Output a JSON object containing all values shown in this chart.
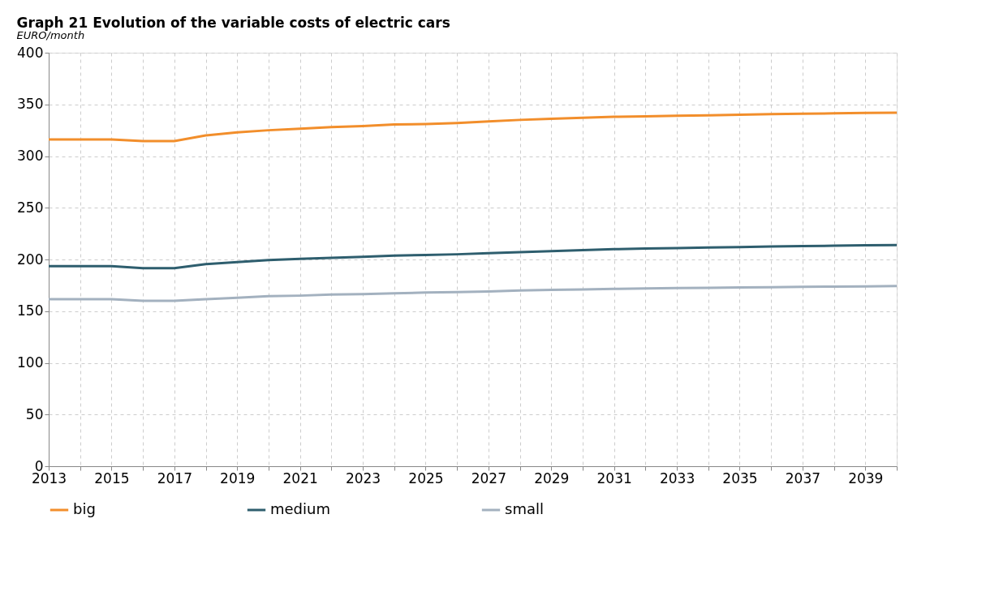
{
  "chart_data": {
    "type": "line",
    "title": "Graph 21   Evolution of the variable costs of electric cars",
    "ylabel": "EURO/month",
    "x": [
      2013,
      2014,
      2015,
      2016,
      2017,
      2018,
      2019,
      2020,
      2021,
      2022,
      2023,
      2024,
      2025,
      2026,
      2027,
      2028,
      2029,
      2030,
      2031,
      2032,
      2033,
      2034,
      2035,
      2036,
      2037,
      2038,
      2039,
      2040
    ],
    "series": [
      {
        "name": "big",
        "color": "#f28e2b",
        "values": [
          316,
          316,
          316,
          314.5,
          314.5,
          320,
          323,
          325,
          326.5,
          328,
          329,
          330.5,
          331,
          332,
          333.5,
          335,
          336,
          337,
          338,
          338.5,
          339,
          339.5,
          340,
          340.5,
          341,
          341.3,
          341.7,
          342
        ]
      },
      {
        "name": "medium",
        "color": "#2e5e6e",
        "values": [
          193.5,
          193.5,
          193.5,
          191.5,
          191.5,
          195.5,
          197.5,
          199.5,
          200.5,
          201.5,
          202.5,
          203.7,
          204.3,
          205,
          206,
          207,
          208,
          209,
          210,
          210.5,
          211,
          211.5,
          212,
          212.5,
          213,
          213.3,
          213.7,
          214
        ]
      },
      {
        "name": "small",
        "color": "#a3b1bf",
        "values": [
          161.5,
          161.5,
          161.5,
          160,
          160,
          161.5,
          163,
          164.5,
          165,
          166,
          166.5,
          167.3,
          168,
          168.5,
          169,
          170,
          170.5,
          171,
          171.5,
          172,
          172.3,
          172.5,
          173,
          173.2,
          173.5,
          173.7,
          174,
          174.3
        ]
      }
    ],
    "xlim": [
      2013,
      2040
    ],
    "xticks": [
      2013,
      {
        "value": 2014,
        "label": null
      },
      2015,
      {
        "value": 2016,
        "label": null
      },
      2017,
      {
        "value": 2018,
        "label": null
      },
      2019,
      {
        "value": 2020,
        "label": null
      },
      2021,
      {
        "value": 2022,
        "label": null
      },
      2023,
      {
        "value": 2024,
        "label": null
      },
      2025,
      {
        "value": 2026,
        "label": null
      },
      2027,
      {
        "value": 2028,
        "label": null
      },
      2029,
      {
        "value": 2030,
        "label": null
      },
      2031,
      {
        "value": 2032,
        "label": null
      },
      2033,
      {
        "value": 2034,
        "label": null
      },
      2035,
      {
        "value": 2036,
        "label": null
      },
      2037,
      {
        "value": 2038,
        "label": null
      },
      2039,
      {
        "value": 2040,
        "label": null
      }
    ],
    "ylim": [
      0,
      400
    ],
    "yticks": [
      0,
      50,
      100,
      150,
      200,
      250,
      300,
      350,
      400
    ],
    "grid": true,
    "legend": "bottom",
    "marker": "none",
    "line_style": "solid"
  }
}
